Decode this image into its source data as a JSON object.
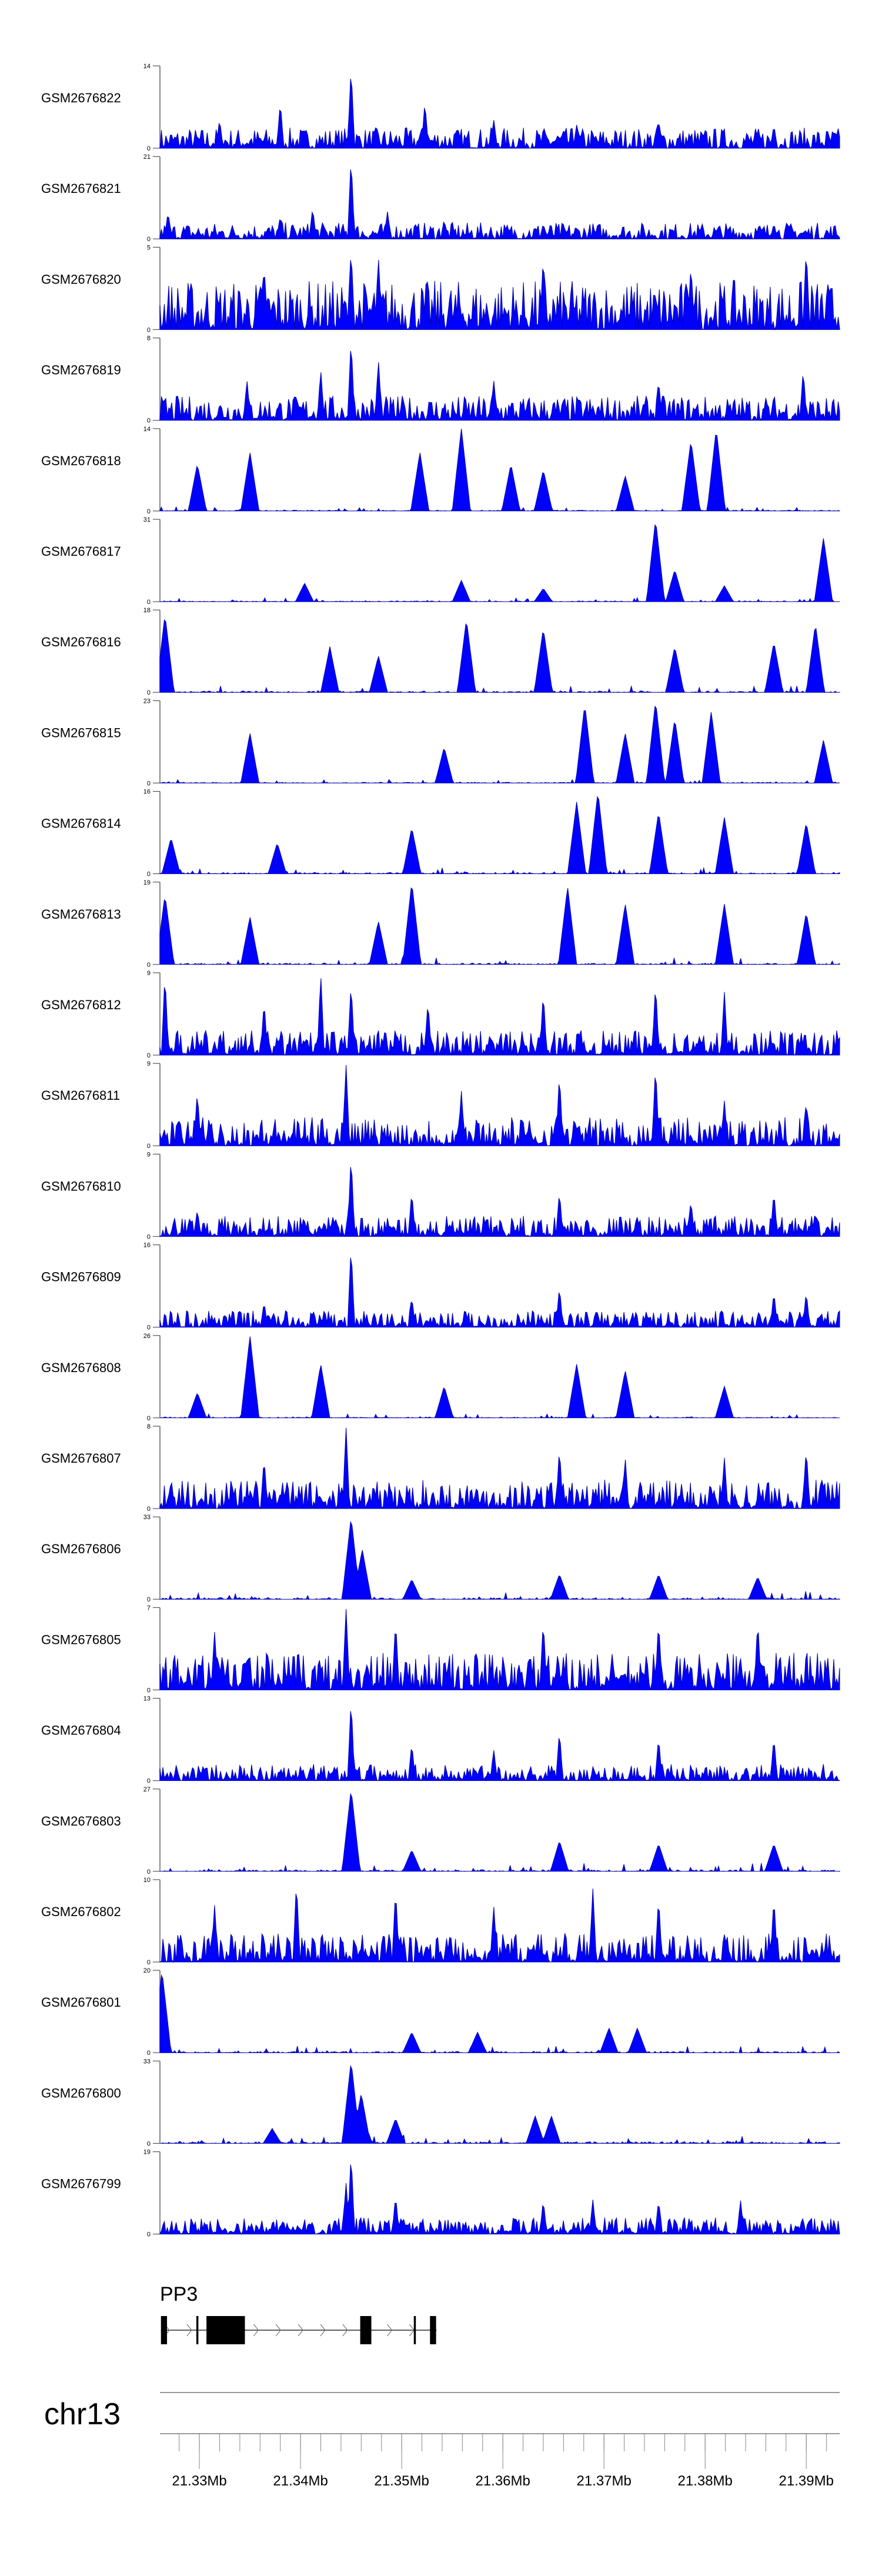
{
  "chart_data": {
    "type": "area",
    "title": "",
    "xlabel": "chr13",
    "xlim_mb": [
      21.3261,
      21.3933
    ],
    "x_ticks": [
      "21.33Mb",
      "21.34Mb",
      "21.35Mb",
      "21.36Mb",
      "21.37Mb",
      "21.38Mb",
      "21.39Mb"
    ],
    "x_tick_values": [
      21.33,
      21.34,
      21.35,
      21.36,
      21.37,
      21.38,
      21.39
    ],
    "minor_tick_step_mb": 0.002,
    "fill_color": "#0000FF",
    "gene": {
      "name": "PP3",
      "exons_mb": [
        [
          21.3262,
          21.3268
        ],
        [
          21.3297,
          21.3299
        ],
        [
          21.3307,
          21.3345
        ],
        [
          21.3459,
          21.347
        ],
        [
          21.3512,
          21.3514
        ],
        [
          21.3528,
          21.3534
        ]
      ],
      "start_mb": 21.3262,
      "end_mb": 21.3534,
      "strand": "+"
    },
    "series": [
      {
        "name": "GSM2676822",
        "ymin": 0,
        "ymax": 14,
        "noise": 0.25,
        "peaks": [
          [
            21.345,
            14
          ],
          [
            21.338,
            8
          ],
          [
            21.3523,
            8
          ],
          [
            21.332,
            5
          ],
          [
            21.3591,
            5
          ],
          [
            21.3754,
            5
          ],
          [
            21.3868,
            4
          ],
          [
            21.3673,
            4
          ]
        ]
      },
      {
        "name": "GSM2676821",
        "ymin": 0,
        "ymax": 21,
        "noise": 0.2,
        "peaks": [
          [
            21.345,
            21
          ],
          [
            21.3412,
            8
          ],
          [
            21.3486,
            7
          ],
          [
            21.3269,
            7
          ],
          [
            21.338,
            6
          ],
          [
            21.3542,
            5
          ],
          [
            21.364,
            4
          ],
          [
            21.3868,
            4
          ]
        ]
      },
      {
        "name": "GSM2676820",
        "ymin": 0,
        "ymax": 5,
        "noise": 0.6,
        "peaks": [
          [
            21.345,
            5
          ],
          [
            21.39,
            5
          ],
          [
            21.3364,
            4
          ],
          [
            21.3477,
            4.5
          ],
          [
            21.364,
            4.5
          ],
          [
            21.3786,
            4
          ]
        ]
      },
      {
        "name": "GSM2676819",
        "ymin": 0,
        "ymax": 8,
        "noise": 0.3,
        "peaks": [
          [
            21.345,
            8
          ],
          [
            21.3477,
            6
          ],
          [
            21.342,
            5
          ],
          [
            21.3897,
            5
          ],
          [
            21.3347,
            4
          ],
          [
            21.3591,
            4
          ],
          [
            21.3754,
            4
          ]
        ]
      },
      {
        "name": "GSM2676818",
        "ymin": 0,
        "ymax": 14,
        "noise": 0.05,
        "peaks": [
          [
            21.3559,
            14
          ],
          [
            21.3811,
            14
          ],
          [
            21.335,
            10
          ],
          [
            21.3786,
            12
          ],
          [
            21.3298,
            8
          ],
          [
            21.3518,
            10
          ],
          [
            21.3608,
            8
          ],
          [
            21.364,
            7
          ],
          [
            21.3721,
            6
          ]
        ]
      },
      {
        "name": "GSM2676817",
        "ymin": 0,
        "ymax": 31,
        "noise": 0.05,
        "peaks": [
          [
            21.3751,
            31
          ],
          [
            21.3917,
            24
          ],
          [
            21.377,
            12
          ],
          [
            21.3559,
            8
          ],
          [
            21.3404,
            7
          ],
          [
            21.364,
            5
          ],
          [
            21.3819,
            6
          ]
        ]
      },
      {
        "name": "GSM2676816",
        "ymin": 0,
        "ymax": 18,
        "noise": 0.08,
        "peaks": [
          [
            21.3564,
            16
          ],
          [
            21.3909,
            15
          ],
          [
            21.364,
            14
          ],
          [
            21.3429,
            10
          ],
          [
            21.3266,
            17
          ],
          [
            21.377,
            10
          ],
          [
            21.3868,
            11
          ],
          [
            21.3477,
            8
          ]
        ]
      },
      {
        "name": "GSM2676815",
        "ymin": 0,
        "ymax": 23,
        "noise": 0.05,
        "peaks": [
          [
            21.3751,
            23
          ],
          [
            21.3681,
            22
          ],
          [
            21.3806,
            20
          ],
          [
            21.335,
            14
          ],
          [
            21.377,
            18
          ],
          [
            21.3917,
            12
          ],
          [
            21.3542,
            10
          ],
          [
            21.3721,
            14
          ]
        ]
      },
      {
        "name": "GSM2676814",
        "ymin": 0,
        "ymax": 16,
        "noise": 0.08,
        "peaks": [
          [
            21.3694,
            16
          ],
          [
            21.3673,
            14
          ],
          [
            21.3754,
            12
          ],
          [
            21.3819,
            11
          ],
          [
            21.39,
            10
          ],
          [
            21.351,
            9
          ],
          [
            21.3272,
            7
          ],
          [
            21.3377,
            6
          ]
        ]
      },
      {
        "name": "GSM2676813",
        "ymin": 0,
        "ymax": 19,
        "noise": 0.08,
        "peaks": [
          [
            21.351,
            19
          ],
          [
            21.3664,
            18
          ],
          [
            21.3266,
            16
          ],
          [
            21.335,
            11
          ],
          [
            21.3721,
            14
          ],
          [
            21.3819,
            14
          ],
          [
            21.39,
            12
          ],
          [
            21.3477,
            10
          ]
        ]
      },
      {
        "name": "GSM2676812",
        "ymin": 0,
        "ymax": 9,
        "noise": 0.3,
        "peaks": [
          [
            21.3266,
            9
          ],
          [
            21.342,
            9
          ],
          [
            21.345,
            8
          ],
          [
            21.3751,
            8
          ],
          [
            21.364,
            7
          ],
          [
            21.3819,
            7
          ],
          [
            21.3364,
            6
          ],
          [
            21.3526,
            6
          ]
        ]
      },
      {
        "name": "GSM2676811",
        "ymin": 0,
        "ymax": 9,
        "noise": 0.35,
        "peaks": [
          [
            21.3445,
            9
          ],
          [
            21.3751,
            9
          ],
          [
            21.3656,
            8
          ],
          [
            21.3298,
            6
          ],
          [
            21.3559,
            6
          ],
          [
            21.3819,
            5
          ],
          [
            21.39,
            5
          ]
        ]
      },
      {
        "name": "GSM2676810",
        "ymin": 0,
        "ymax": 9,
        "noise": 0.25,
        "peaks": [
          [
            21.345,
            9
          ],
          [
            21.351,
            5
          ],
          [
            21.3656,
            5
          ],
          [
            21.3786,
            4
          ],
          [
            21.3868,
            5
          ],
          [
            21.3298,
            3
          ]
        ]
      },
      {
        "name": "GSM2676809",
        "ymin": 0,
        "ymax": 16,
        "noise": 0.2,
        "peaks": [
          [
            21.345,
            16
          ],
          [
            21.3656,
            8
          ],
          [
            21.3868,
            7
          ],
          [
            21.39,
            7
          ],
          [
            21.351,
            6
          ],
          [
            21.3364,
            5
          ]
        ]
      },
      {
        "name": "GSM2676808",
        "ymin": 0,
        "ymax": 26,
        "noise": 0.05,
        "peaks": [
          [
            21.335,
            26
          ],
          [
            21.342,
            17
          ],
          [
            21.3673,
            17
          ],
          [
            21.3721,
            15
          ],
          [
            21.3542,
            10
          ],
          [
            21.3298,
            8
          ],
          [
            21.3819,
            10
          ]
        ]
      },
      {
        "name": "GSM2676807",
        "ymin": 0,
        "ymax": 8,
        "noise": 0.35,
        "peaks": [
          [
            21.3445,
            8
          ],
          [
            21.3656,
            6
          ],
          [
            21.3721,
            5
          ],
          [
            21.3819,
            5
          ],
          [
            21.39,
            6
          ],
          [
            21.3364,
            5
          ]
        ]
      },
      {
        "name": "GSM2676806",
        "ymin": 0,
        "ymax": 33,
        "noise": 0.1,
        "peaks": [
          [
            21.345,
            33
          ],
          [
            21.3461,
            20
          ],
          [
            21.3656,
            10
          ],
          [
            21.3754,
            10
          ],
          [
            21.3852,
            9
          ],
          [
            21.351,
            8
          ]
        ]
      },
      {
        "name": "GSM2676805",
        "ymin": 0,
        "ymax": 7,
        "noise": 0.45,
        "peaks": [
          [
            21.3445,
            7
          ],
          [
            21.3494,
            6
          ],
          [
            21.364,
            6
          ],
          [
            21.3852,
            6
          ],
          [
            21.3315,
            5
          ],
          [
            21.3754,
            6
          ]
        ]
      },
      {
        "name": "GSM2676804",
        "ymin": 0,
        "ymax": 13,
        "noise": 0.2,
        "peaks": [
          [
            21.345,
            13
          ],
          [
            21.3656,
            8
          ],
          [
            21.3754,
            7
          ],
          [
            21.3868,
            7
          ],
          [
            21.351,
            6
          ],
          [
            21.3591,
            5
          ]
        ]
      },
      {
        "name": "GSM2676803",
        "ymin": 0,
        "ymax": 27,
        "noise": 0.1,
        "peaks": [
          [
            21.345,
            27
          ],
          [
            21.3656,
            10
          ],
          [
            21.3754,
            9
          ],
          [
            21.3868,
            9
          ],
          [
            21.351,
            7
          ]
        ]
      },
      {
        "name": "GSM2676802",
        "ymin": 0,
        "ymax": 10,
        "noise": 0.35,
        "peaks": [
          [
            21.3396,
            10
          ],
          [
            21.3494,
            9
          ],
          [
            21.3689,
            9
          ],
          [
            21.3868,
            8
          ],
          [
            21.3315,
            7
          ],
          [
            21.3591,
            7
          ],
          [
            21.3754,
            8
          ]
        ]
      },
      {
        "name": "GSM2676801",
        "ymin": 0,
        "ymax": 20,
        "noise": 0.08,
        "peaks": [
          [
            21.3263,
            20
          ],
          [
            21.3705,
            6
          ],
          [
            21.3733,
            6
          ],
          [
            21.3575,
            5
          ],
          [
            21.351,
            5
          ]
        ]
      },
      {
        "name": "GSM2676800",
        "ymin": 0,
        "ymax": 33,
        "noise": 0.1,
        "peaks": [
          [
            21.345,
            33
          ],
          [
            21.346,
            20
          ],
          [
            21.3494,
            10
          ],
          [
            21.3632,
            11
          ],
          [
            21.3648,
            11
          ],
          [
            21.3372,
            6
          ]
        ]
      },
      {
        "name": "GSM2676799",
        "ymin": 0,
        "ymax": 19,
        "noise": 0.2,
        "peaks": [
          [
            21.345,
            19
          ],
          [
            21.3445,
            12
          ],
          [
            21.3494,
            9
          ],
          [
            21.364,
            8
          ],
          [
            21.3689,
            8
          ],
          [
            21.3754,
            8
          ],
          [
            21.3835,
            8
          ]
        ]
      }
    ]
  }
}
